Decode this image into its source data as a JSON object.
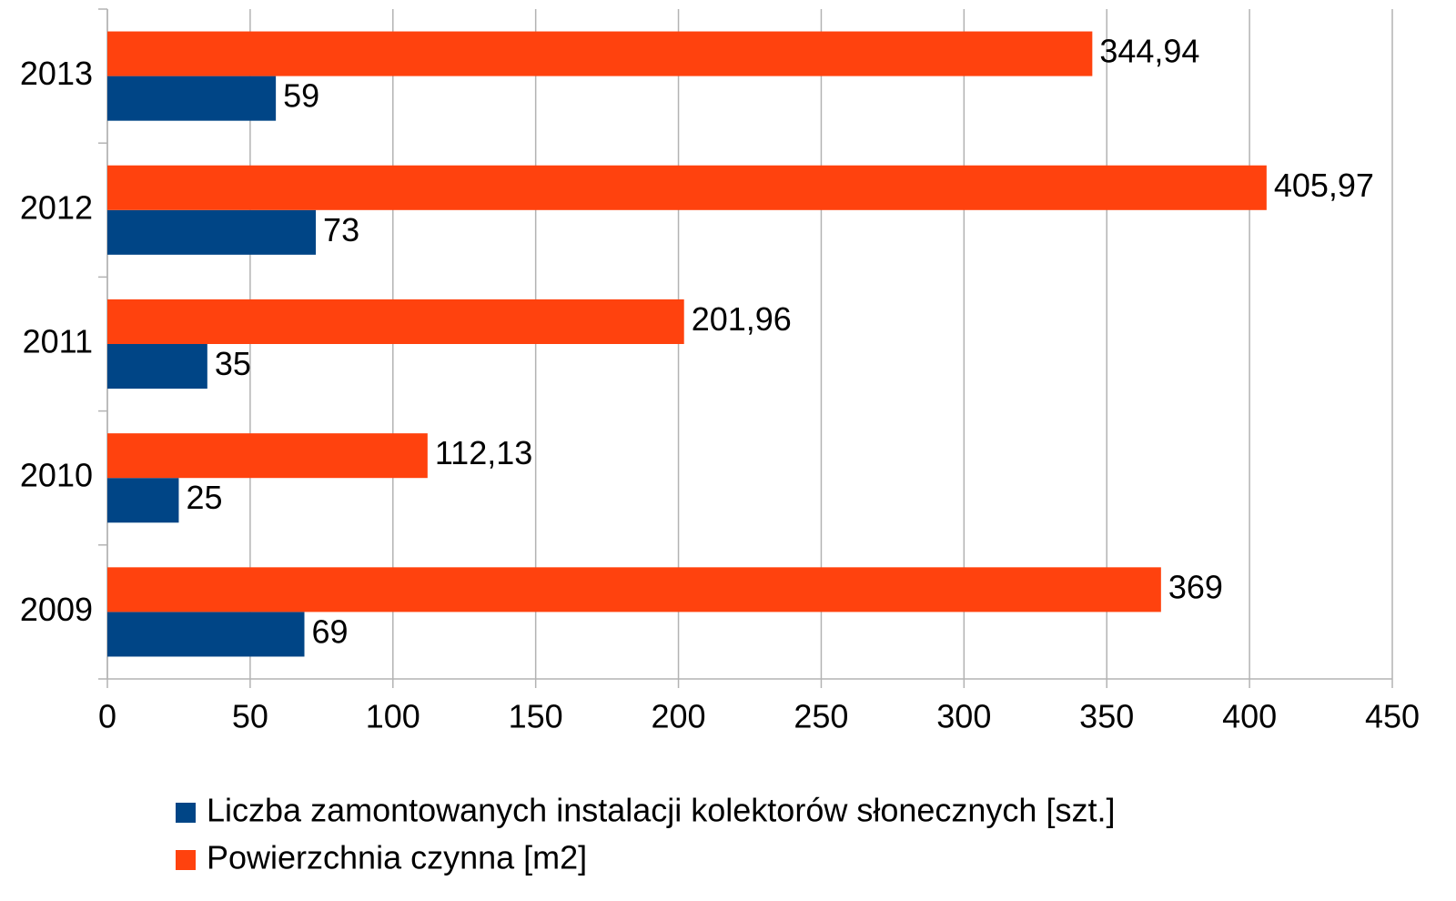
{
  "chart_data": {
    "type": "bar",
    "orientation": "horizontal",
    "categories": [
      "2009",
      "2010",
      "2011",
      "2012",
      "2013"
    ],
    "series": [
      {
        "name": "Liczba zamontowanych instalacji kolektorów słonecznych [szt.]",
        "color": "#004586",
        "values": [
          69,
          25,
          35,
          73,
          59
        ]
      },
      {
        "name": "Powierzchnia czynna [m2]",
        "color": "#ff420e",
        "values": [
          369,
          112.13,
          201.96,
          405.97,
          344.94
        ],
        "value_labels": [
          "369",
          "112,13",
          "201,96",
          "405,97",
          "344,94"
        ]
      }
    ],
    "xlim": [
      0,
      450
    ],
    "xticks": [
      0,
      50,
      100,
      150,
      200,
      250,
      300,
      350,
      400,
      450
    ],
    "grid": true,
    "legend": "bottom"
  }
}
